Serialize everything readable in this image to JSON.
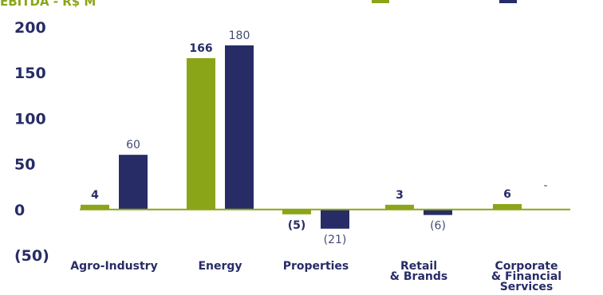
{
  "chart_data": {
    "type": "bar",
    "title": "EBITDA - R$ M",
    "categories": [
      "Agro-Industry",
      "Energy",
      "Properties",
      "Retail\n& Brands",
      "Corporate\n& Financial\nServices"
    ],
    "series": [
      {
        "color": "#8aa518",
        "values": [
          4,
          166,
          -5,
          3,
          6
        ],
        "labels": [
          "4",
          "166",
          "(5)",
          "3",
          "6"
        ]
      },
      {
        "color": "#272c67",
        "values": [
          60,
          180,
          -21,
          -6,
          null
        ],
        "labels": [
          "60",
          "180",
          "(21)",
          "(6)",
          "-"
        ]
      }
    ],
    "yticks": [
      "200",
      "150",
      "100",
      "50",
      "0",
      "(50)"
    ],
    "ytick_values": [
      200,
      150,
      100,
      50,
      0,
      -50
    ],
    "ylim": [
      -50,
      200
    ],
    "zero_line_color": "#8aa518",
    "text_color": "#272c67"
  }
}
